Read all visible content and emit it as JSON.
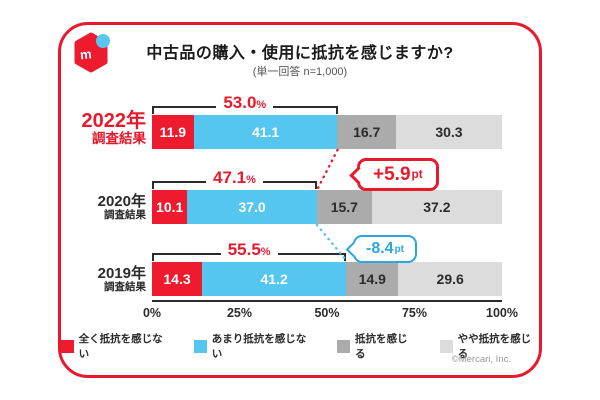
{
  "header": {
    "title": "中古品の購入・使用に抵抗を感じますか?",
    "subtitle": "(単一回答 n=1,000)"
  },
  "logo": {
    "letter": "m"
  },
  "chart_data": {
    "type": "bar",
    "variant": "horizontal-stacked",
    "unit": "%",
    "xlim": [
      0,
      100
    ],
    "x_ticks": [
      "0%",
      "25%",
      "50%",
      "75%",
      "100%"
    ],
    "legend_position": "bottom",
    "categories": [
      "2022年調査結果",
      "2020年調査結果",
      "2019年調査結果"
    ],
    "series": [
      {
        "name": "全く抵抗を感じない",
        "color": "#EE1B2E",
        "values": [
          11.9,
          10.1,
          14.3
        ]
      },
      {
        "name": "あまり抵抗を感じない",
        "color": "#55C6F0",
        "values": [
          41.1,
          37.0,
          41.2
        ]
      },
      {
        "name": "抵抗を感じる",
        "color": "#ABABAB",
        "values": [
          16.7,
          15.7,
          14.9
        ]
      },
      {
        "name": "やや抵抗を感じる",
        "color": "#DCDCDC",
        "values": [
          30.3,
          37.2,
          29.6
        ]
      }
    ],
    "bracket_totals": [
      53.0,
      47.1,
      55.5
    ],
    "annotations": [
      {
        "text": "+5.9pt",
        "color": "#E8192C"
      },
      {
        "text": "-8.4pt",
        "color": "#2BA6DF"
      }
    ]
  },
  "rows": [
    {
      "year": "2022年",
      "sub": "調査結果",
      "bracket": "53.0",
      "bracket_unit": "%",
      "bracket_width": 53.0,
      "values": [
        "11.9",
        "41.1",
        "16.7",
        "30.3"
      ],
      "widths": [
        11.9,
        41.1,
        16.7,
        30.3
      ]
    },
    {
      "year": "2020年",
      "sub": "調査結果",
      "bracket": "47.1",
      "bracket_unit": "%",
      "bracket_width": 47.1,
      "values": [
        "10.1",
        "37.0",
        "15.7",
        "37.2"
      ],
      "widths": [
        10.1,
        37.0,
        15.7,
        37.2
      ]
    },
    {
      "year": "2019年",
      "sub": "調査結果",
      "bracket": "55.5",
      "bracket_unit": "%",
      "bracket_width": 55.5,
      "values": [
        "14.3",
        "41.2",
        "14.9",
        "29.6"
      ],
      "widths": [
        14.3,
        41.2,
        14.9,
        29.6
      ]
    }
  ],
  "callouts": {
    "plus": {
      "value": "+5.9",
      "unit": "pt",
      "color": "#E8192C"
    },
    "minus": {
      "value": "-8.4",
      "unit": "pt",
      "color": "#2BA6DF"
    }
  },
  "axis": {
    "ticks": [
      "0%",
      "25%",
      "50%",
      "75%",
      "100%"
    ]
  },
  "legend": {
    "items": [
      {
        "label": "全く抵抗を感じない",
        "color": "#EE1B2E"
      },
      {
        "label": "あまり抵抗を感じない",
        "color": "#55C6F0"
      },
      {
        "label": "抵抗を感じる",
        "color": "#ABABAB"
      },
      {
        "label": "やや抵抗を感じる",
        "color": "#DCDCDC"
      }
    ]
  },
  "footer": {
    "copyright": "©Mercari, Inc."
  }
}
